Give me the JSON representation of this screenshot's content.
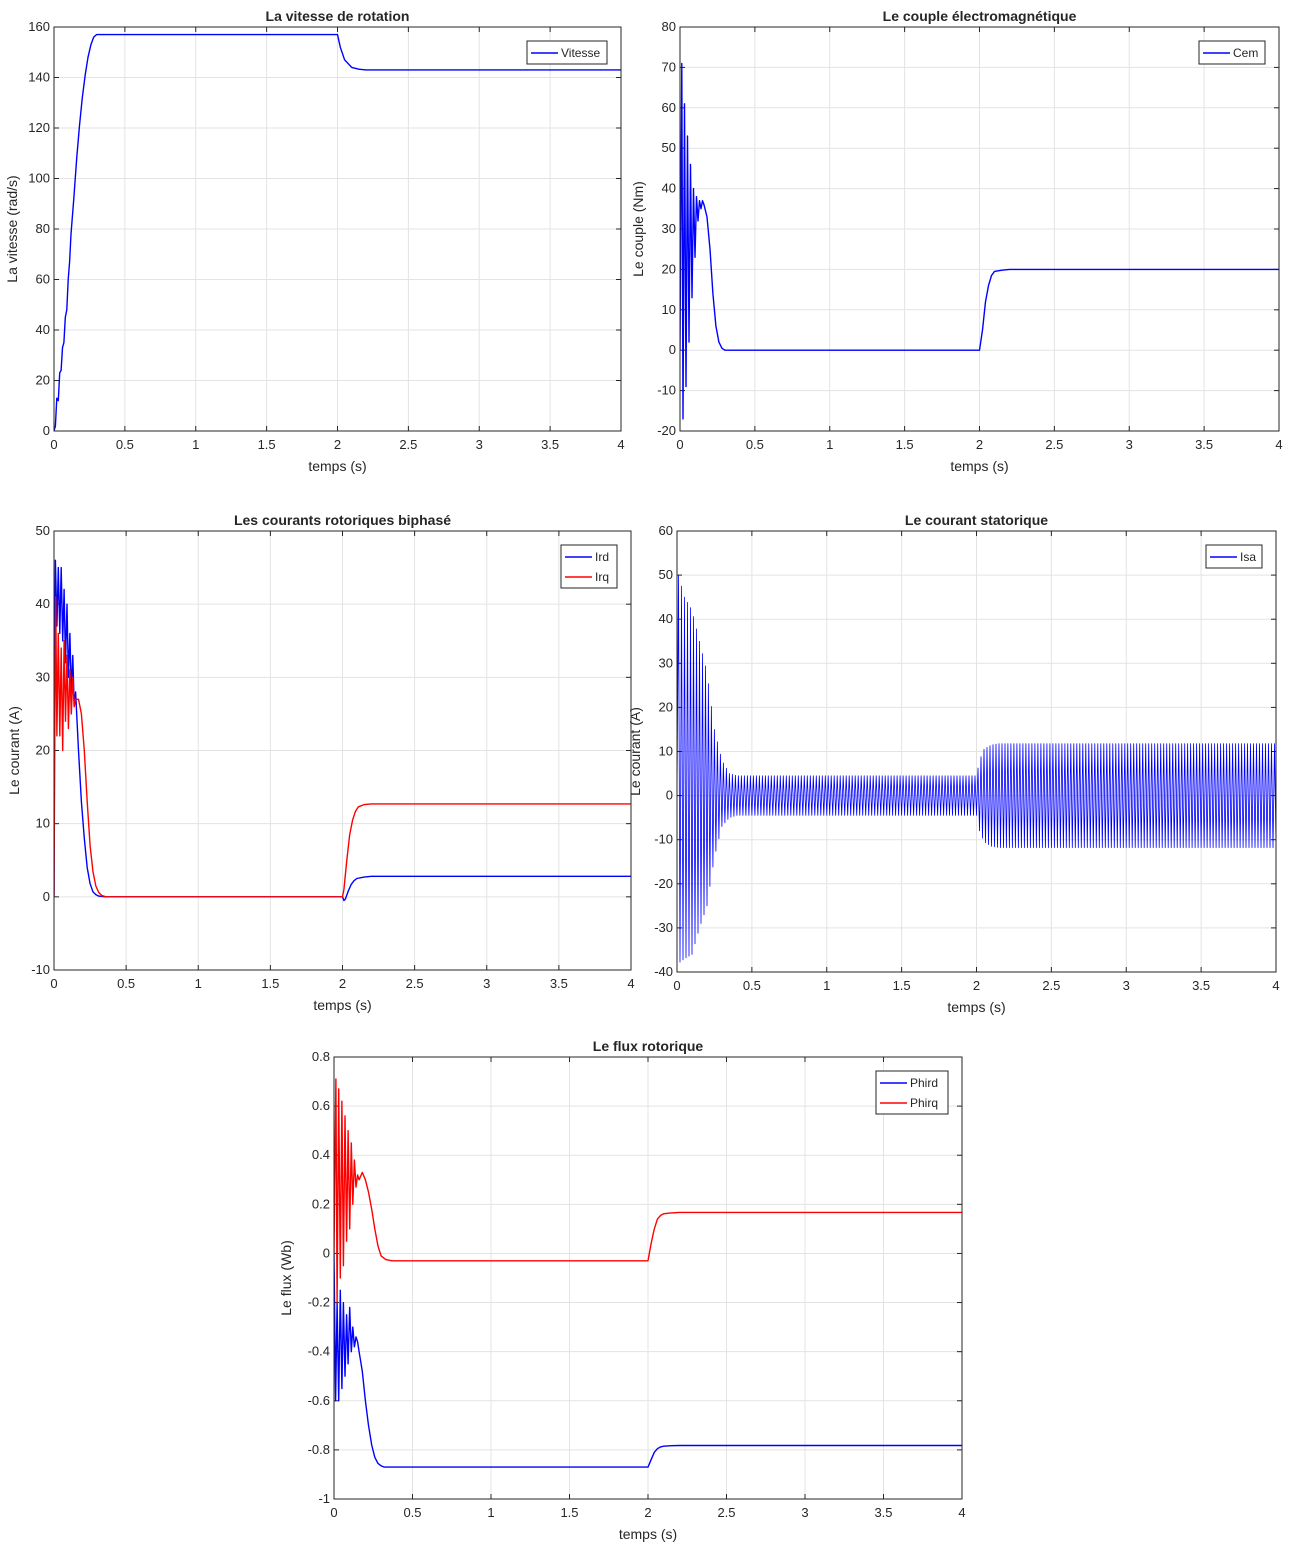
{
  "chart_data": [
    {
      "type": "line",
      "title": "La vitesse de rotation",
      "xlabel": "temps (s)",
      "ylabel": "La vitesse (rad/s)",
      "xlim": [
        0,
        4
      ],
      "ylim": [
        0,
        160
      ],
      "xticks": [
        "0",
        "0.5",
        "1",
        "1.5",
        "2",
        "2.5",
        "3",
        "3.5",
        "4"
      ],
      "yticks": [
        "0",
        "20",
        "40",
        "60",
        "80",
        "100",
        "120",
        "140",
        "160"
      ],
      "grid": true,
      "legend_position": "top-right",
      "series": [
        {
          "name": "Vitesse",
          "color": "#0000ff",
          "x": [
            0,
            0.01,
            0.02,
            0.03,
            0.04,
            0.05,
            0.06,
            0.07,
            0.08,
            0.09,
            0.1,
            0.11,
            0.12,
            0.14,
            0.16,
            0.18,
            0.2,
            0.22,
            0.24,
            0.26,
            0.28,
            0.3,
            0.32,
            0.35,
            0.4,
            1.0,
            1.6,
            1.99,
            2.0,
            2.02,
            2.05,
            2.1,
            2.15,
            2.2,
            2.3,
            2.5,
            3.0,
            3.5,
            4.0
          ],
          "y": [
            0,
            2,
            13,
            12,
            23,
            24,
            33,
            35,
            45,
            48,
            60,
            67,
            78,
            92,
            108,
            121,
            132,
            141,
            148,
            153,
            156,
            157,
            157,
            157,
            157,
            157,
            157,
            157,
            157,
            152,
            147,
            144,
            143.3,
            143,
            143,
            143,
            143,
            143,
            143
          ]
        }
      ]
    },
    {
      "type": "line",
      "title": "Le couple électromagnétique",
      "xlabel": "temps (s)",
      "ylabel": "Le couple (Nm)",
      "xlim": [
        0,
        4
      ],
      "ylim": [
        -20,
        80
      ],
      "xticks": [
        "0",
        "0.5",
        "1",
        "1.5",
        "2",
        "2.5",
        "3",
        "3.5",
        "4"
      ],
      "yticks": [
        "-20",
        "-10",
        "0",
        "10",
        "20",
        "30",
        "40",
        "50",
        "60",
        "70",
        "80"
      ],
      "grid": true,
      "legend_position": "top-right",
      "series": [
        {
          "name": "Cem",
          "color": "#0000ff",
          "x": [
            0,
            0.005,
            0.012,
            0.02,
            0.03,
            0.04,
            0.05,
            0.06,
            0.07,
            0.08,
            0.09,
            0.1,
            0.11,
            0.12,
            0.13,
            0.14,
            0.15,
            0.16,
            0.18,
            0.2,
            0.22,
            0.24,
            0.26,
            0.28,
            0.3,
            0.32,
            0.35,
            0.4,
            1.0,
            1.5,
            2.0,
            2.02,
            2.04,
            2.06,
            2.08,
            2.1,
            2.15,
            2.2,
            2.3,
            3.0,
            4.0
          ],
          "y": [
            0,
            30,
            71,
            -17,
            61,
            -9,
            53,
            2,
            46,
            13,
            40,
            23,
            38,
            32,
            37,
            35,
            37,
            36,
            33,
            25,
            14,
            6,
            2,
            0.5,
            0,
            0,
            0,
            0,
            0,
            0,
            0,
            5,
            12,
            16,
            18.5,
            19.5,
            19.8,
            20,
            20,
            20,
            20
          ]
        }
      ]
    },
    {
      "type": "line",
      "title": "Les courants rotoriques biphasé",
      "xlabel": "temps (s)",
      "ylabel": "Le courant (A)",
      "xlim": [
        0,
        4
      ],
      "ylim": [
        -10,
        50
      ],
      "xticks": [
        "0",
        "0.5",
        "1",
        "1.5",
        "2",
        "2.5",
        "3",
        "3.5",
        "4"
      ],
      "yticks": [
        "-10",
        "0",
        "10",
        "20",
        "30",
        "40",
        "50"
      ],
      "grid": true,
      "legend_position": "top-right",
      "series": [
        {
          "name": "Ird",
          "color": "#0000ff",
          "x": [
            0,
            0.005,
            0.01,
            0.02,
            0.03,
            0.04,
            0.05,
            0.06,
            0.07,
            0.08,
            0.09,
            0.1,
            0.11,
            0.12,
            0.13,
            0.14,
            0.15,
            0.17,
            0.19,
            0.21,
            0.23,
            0.25,
            0.27,
            0.29,
            0.31,
            0.35,
            0.4,
            1.0,
            1.5,
            2.0,
            2.01,
            2.02,
            2.04,
            2.06,
            2.08,
            2.1,
            2.15,
            2.2,
            3.0,
            4.0
          ],
          "y": [
            0,
            30,
            46,
            37,
            45,
            36,
            45,
            35,
            42,
            32,
            40,
            30,
            36,
            28,
            33,
            26,
            28,
            20,
            13,
            8,
            4,
            1.8,
            0.7,
            0.3,
            0.1,
            0,
            0,
            0,
            0,
            0,
            -0.5,
            -0.3,
            0.8,
            1.7,
            2.2,
            2.5,
            2.7,
            2.8,
            2.8,
            2.8
          ]
        },
        {
          "name": "Irq",
          "color": "#ff0000",
          "x": [
            0,
            0.005,
            0.012,
            0.02,
            0.03,
            0.04,
            0.05,
            0.06,
            0.07,
            0.08,
            0.09,
            0.1,
            0.11,
            0.12,
            0.13,
            0.14,
            0.15,
            0.17,
            0.19,
            0.21,
            0.23,
            0.25,
            0.27,
            0.29,
            0.31,
            0.33,
            0.36,
            0.4,
            1.0,
            1.5,
            2.0,
            2.01,
            2.03,
            2.05,
            2.07,
            2.09,
            2.11,
            2.15,
            2.2,
            3.0,
            4.0
          ],
          "y": [
            0,
            20,
            41,
            22,
            36,
            22,
            34,
            20,
            35,
            24,
            33,
            23,
            31,
            25,
            30,
            26,
            27,
            27,
            25,
            20,
            13,
            7,
            3.5,
            1.5,
            0.6,
            0.2,
            0,
            0,
            0,
            0,
            0,
            1,
            5,
            8.5,
            10.5,
            11.7,
            12.3,
            12.6,
            12.7,
            12.7,
            12.7
          ]
        }
      ]
    },
    {
      "type": "line",
      "title": "Le courant statorique",
      "xlabel": "temps (s)",
      "ylabel": "Le courant (A)",
      "xlim": [
        0,
        4
      ],
      "ylim": [
        -40,
        60
      ],
      "xticks": [
        "0",
        "0.5",
        "1",
        "1.5",
        "2",
        "2.5",
        "3",
        "3.5",
        "4"
      ],
      "yticks": [
        "-40",
        "-30",
        "-20",
        "-10",
        "0",
        "10",
        "20",
        "30",
        "40",
        "50",
        "60"
      ],
      "grid": true,
      "legend_position": "top-right",
      "series": [
        {
          "name": "Isa",
          "color": "#0000ff",
          "frequency_hz": 50,
          "envelope_t": [
            0,
            0.01,
            0.05,
            0.1,
            0.15,
            0.2,
            0.25,
            0.3,
            0.35,
            0.4,
            2.0,
            2.02,
            2.05,
            2.1,
            2.15,
            4.0
          ],
          "envelope_pos": [
            0,
            50,
            45,
            42,
            35,
            28,
            15,
            8,
            5,
            4.5,
            4.5,
            8,
            10.5,
            11.5,
            11.8,
            11.8
          ],
          "envelope_neg": [
            0,
            -38,
            -37,
            -36,
            -30,
            -25,
            -14,
            -7,
            -5,
            -4.5,
            -4.5,
            -8,
            -10.5,
            -11.5,
            -11.8,
            -11.8
          ]
        }
      ]
    },
    {
      "type": "line",
      "title": "Le flux rotorique",
      "xlabel": "temps (s)",
      "ylabel": "Le flux (Wb)",
      "xlim": [
        0,
        4
      ],
      "ylim": [
        -1,
        0.8
      ],
      "xticks": [
        "0",
        "0.5",
        "1",
        "1.5",
        "2",
        "2.5",
        "3",
        "3.5",
        "4"
      ],
      "yticks": [
        "-1",
        "-0.8",
        "-0.6",
        "-0.4",
        "-0.2",
        "0",
        "0.2",
        "0.4",
        "0.6",
        "0.8"
      ],
      "grid": true,
      "legend_position": "top-right",
      "series": [
        {
          "name": "Phird",
          "color": "#0000ff",
          "x": [
            0,
            0.005,
            0.01,
            0.02,
            0.03,
            0.04,
            0.05,
            0.06,
            0.07,
            0.08,
            0.09,
            0.1,
            0.11,
            0.12,
            0.13,
            0.14,
            0.15,
            0.16,
            0.18,
            0.2,
            0.22,
            0.24,
            0.26,
            0.28,
            0.3,
            0.32,
            0.35,
            0.4,
            1.0,
            1.5,
            2.0,
            2.02,
            2.04,
            2.06,
            2.08,
            2.1,
            2.15,
            2.2,
            3.0,
            4.0
          ],
          "y": [
            0,
            -0.3,
            -0.6,
            -0.2,
            -0.6,
            -0.15,
            -0.55,
            -0.2,
            -0.5,
            -0.25,
            -0.45,
            -0.22,
            -0.4,
            -0.3,
            -0.38,
            -0.34,
            -0.36,
            -0.4,
            -0.48,
            -0.6,
            -0.7,
            -0.78,
            -0.83,
            -0.855,
            -0.865,
            -0.87,
            -0.87,
            -0.87,
            -0.87,
            -0.87,
            -0.87,
            -0.84,
            -0.81,
            -0.795,
            -0.788,
            -0.785,
            -0.783,
            -0.782,
            -0.782,
            -0.782
          ]
        },
        {
          "name": "Phirq",
          "color": "#ff0000",
          "x": [
            0,
            0.005,
            0.012,
            0.02,
            0.03,
            0.04,
            0.05,
            0.06,
            0.07,
            0.08,
            0.09,
            0.1,
            0.11,
            0.12,
            0.13,
            0.14,
            0.15,
            0.16,
            0.18,
            0.2,
            0.22,
            0.24,
            0.26,
            0.28,
            0.3,
            0.33,
            0.37,
            0.4,
            1.0,
            1.5,
            2.0,
            2.02,
            2.04,
            2.06,
            2.08,
            2.1,
            2.15,
            2.2,
            3.0,
            4.0
          ],
          "y": [
            0,
            0.3,
            0.71,
            -0.2,
            0.67,
            -0.1,
            0.62,
            -0.05,
            0.56,
            0.05,
            0.5,
            0.1,
            0.45,
            0.2,
            0.38,
            0.27,
            0.32,
            0.3,
            0.33,
            0.3,
            0.25,
            0.18,
            0.1,
            0.03,
            -0.01,
            -0.025,
            -0.03,
            -0.03,
            -0.03,
            -0.03,
            -0.03,
            0.04,
            0.1,
            0.14,
            0.155,
            0.162,
            0.165,
            0.167,
            0.167,
            0.167
          ]
        }
      ]
    }
  ]
}
